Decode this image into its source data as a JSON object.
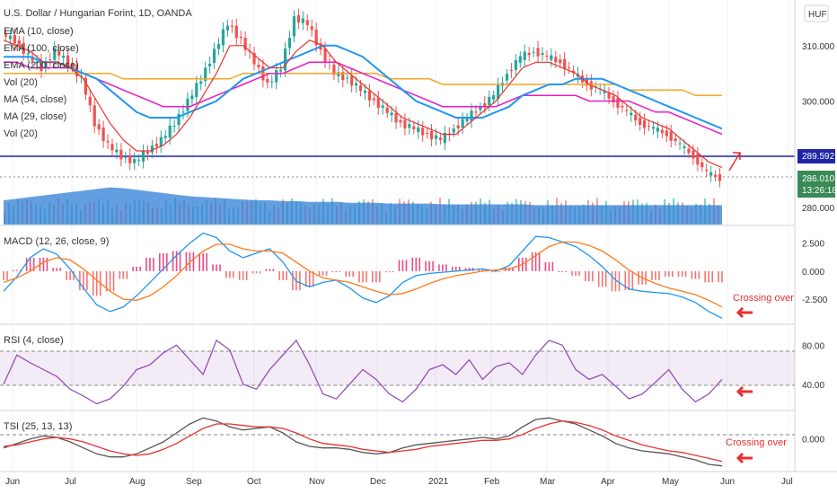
{
  "header": {
    "title": "U.S. Dollar / Hungarian Forint, 1D, OANDA",
    "currency": "HUF",
    "legend": [
      "EMA (10, close)",
      "EMA (100, close)",
      "EMA (200, close)",
      "Vol (20)",
      "MA (54, close)",
      "MA (29, close)",
      "Vol (20)"
    ]
  },
  "panes": {
    "macd_label": "MACD (12, 26, close, 9)",
    "rsi_label": "RSI (4, close)",
    "tsi_label": "TSI (25, 13, 13)"
  },
  "annotations": {
    "macd_note": "Crossing over",
    "tsi_note": "Crossing over"
  },
  "price_badges": {
    "level": "289.592",
    "last": "286.010",
    "countdown": "13:26:18"
  },
  "colors": {
    "up": "#26a69a",
    "down": "#ef5350",
    "ema10": "#e8322f",
    "ema100": "#e91ec6",
    "ema200": "#f5a623",
    "ma54": "#2196f3",
    "volume": "#2f7fd6",
    "level_line": "#1f26a8",
    "macd": "#2196f3",
    "signal": "#ff7a1a",
    "hist_pos": "#e91e63",
    "rsi": "#8e44ad",
    "tsi": "#555555",
    "tsi_signal": "#e8322f",
    "annotation": "#e8322f"
  },
  "chart_data": {
    "type": "line",
    "x_labels": [
      "Jun",
      "Jul",
      "Aug",
      "Sep",
      "Oct",
      "Nov",
      "Dec",
      "2021",
      "Feb",
      "Mar",
      "Apr",
      "May",
      "Jun",
      "Jul"
    ],
    "price_axis": [
      "310.000",
      "300.000",
      "280.000"
    ],
    "macd_axis": [
      "2.500",
      "0.000",
      "-2.500"
    ],
    "rsi_axis": [
      "80.00",
      "40.00"
    ],
    "tsi_axis": [
      "0.000"
    ],
    "price_close": [
      312,
      311,
      308,
      306,
      309,
      307,
      304,
      296,
      292,
      290,
      289,
      291,
      293,
      296,
      300,
      304,
      309,
      314,
      311,
      307,
      303,
      306,
      315,
      314,
      309,
      305,
      304,
      302,
      300,
      298,
      296,
      295,
      294,
      293,
      295,
      297,
      299,
      301,
      305,
      308,
      309,
      308,
      307,
      305,
      303,
      302,
      300,
      298,
      296,
      295,
      294,
      292,
      290,
      287,
      286
    ],
    "ema10": [
      311,
      310,
      309,
      307,
      307,
      306,
      304,
      300,
      296,
      293,
      291,
      291,
      292,
      294,
      297,
      301,
      305,
      310,
      310,
      308,
      306,
      306,
      309,
      311,
      310,
      307,
      305,
      303,
      301,
      299,
      297,
      296,
      295,
      294,
      294,
      296,
      298,
      300,
      303,
      306,
      307,
      307,
      306,
      305,
      303,
      302,
      301,
      299,
      297,
      296,
      295,
      293,
      291,
      289,
      288
    ],
    "ema100": [
      307,
      307,
      306,
      306,
      306,
      306,
      305,
      304,
      303,
      302,
      301,
      300,
      299,
      299,
      299,
      300,
      301,
      302,
      303,
      304,
      305,
      305,
      306,
      307,
      307,
      307,
      306,
      305,
      304,
      303,
      302,
      301,
      300,
      299,
      299,
      299,
      299,
      299,
      300,
      301,
      301,
      301,
      301,
      301,
      300,
      300,
      300,
      300,
      299,
      298,
      298,
      297,
      296,
      295,
      294
    ],
    "ema200": [
      305,
      305,
      305,
      305,
      305,
      305,
      305,
      305,
      305,
      304,
      304,
      304,
      304,
      304,
      304,
      304,
      304,
      304,
      305,
      305,
      305,
      305,
      305,
      305,
      305,
      305,
      305,
      305,
      305,
      304,
      304,
      304,
      304,
      303,
      303,
      303,
      303,
      303,
      303,
      303,
      303,
      303,
      303,
      303,
      303,
      303,
      303,
      302,
      302,
      302,
      302,
      302,
      301,
      301,
      301
    ],
    "ma54": [
      308,
      308,
      308,
      307,
      307,
      306,
      305,
      304,
      302,
      300,
      298,
      297,
      297,
      297,
      298,
      299,
      300,
      302,
      304,
      305,
      306,
      307,
      308,
      309,
      310,
      310,
      309,
      308,
      306,
      304,
      302,
      300,
      299,
      298,
      297,
      297,
      297,
      298,
      299,
      301,
      302,
      303,
      303,
      304,
      304,
      304,
      303,
      302,
      301,
      300,
      299,
      298,
      297,
      296,
      295
    ],
    "volume": [
      30,
      32,
      34,
      36,
      38,
      40,
      42,
      44,
      46,
      45,
      43,
      41,
      39,
      37,
      35,
      34,
      33,
      32,
      31,
      30,
      30,
      29,
      29,
      28,
      28,
      28,
      27,
      27,
      27,
      26,
      26,
      26,
      26,
      25,
      25,
      25,
      25,
      25,
      25,
      25,
      24,
      24,
      24,
      24,
      24,
      24,
      24,
      24,
      24,
      24,
      24,
      24,
      24,
      24,
      24
    ],
    "macd": [
      -1.8,
      -0.5,
      1.2,
      2.0,
      1.5,
      0.2,
      -1.5,
      -3.0,
      -3.6,
      -3.2,
      -2.2,
      -1.0,
      0.2,
      1.4,
      2.5,
      3.4,
      3.0,
      1.8,
      1.2,
      1.6,
      2.0,
      0.8,
      -0.9,
      -1.4,
      -1.0,
      -0.8,
      -1.5,
      -2.4,
      -2.8,
      -2.2,
      -1.0,
      -0.4,
      -0.2,
      -0.1,
      0.0,
      0.1,
      0.2,
      0.0,
      0.5,
      1.8,
      3.1,
      3.0,
      2.6,
      2.2,
      1.4,
      0.4,
      -0.8,
      -1.6,
      -1.8,
      -1.9,
      -2.0,
      -2.3,
      -2.8,
      -3.6,
      -4.2
    ],
    "signal": [
      -1.0,
      -0.6,
      0.0,
      0.8,
      1.2,
      1.0,
      0.2,
      -0.8,
      -1.8,
      -2.5,
      -2.6,
      -2.2,
      -1.4,
      -0.4,
      0.8,
      1.8,
      2.4,
      2.4,
      2.0,
      1.8,
      1.8,
      1.6,
      0.8,
      0.0,
      -0.6,
      -0.8,
      -1.0,
      -1.4,
      -1.8,
      -2.1,
      -2.0,
      -1.6,
      -1.1,
      -0.7,
      -0.4,
      -0.2,
      0.0,
      0.1,
      0.2,
      0.6,
      1.4,
      2.2,
      2.6,
      2.6,
      2.3,
      1.8,
      1.0,
      0.1,
      -0.6,
      -1.1,
      -1.5,
      -1.8,
      -2.1,
      -2.6,
      -3.2
    ],
    "rsi": [
      40,
      70,
      62,
      55,
      48,
      35,
      28,
      20,
      25,
      38,
      55,
      60,
      72,
      80,
      65,
      50,
      85,
      75,
      40,
      35,
      55,
      70,
      85,
      60,
      30,
      25,
      40,
      55,
      45,
      30,
      22,
      35,
      55,
      60,
      50,
      65,
      45,
      58,
      62,
      50,
      70,
      85,
      80,
      55,
      45,
      50,
      38,
      25,
      30,
      42,
      55,
      35,
      22,
      30,
      45
    ],
    "tsi": [
      -6,
      -3,
      0,
      2,
      1,
      -2,
      -6,
      -10,
      -12,
      -12,
      -10,
      -6,
      -2,
      4,
      10,
      14,
      12,
      8,
      6,
      7,
      8,
      4,
      -2,
      -5,
      -6,
      -6,
      -7,
      -9,
      -10,
      -9,
      -6,
      -4,
      -3,
      -2,
      -1,
      0,
      1,
      0,
      2,
      8,
      13,
      14,
      12,
      10,
      6,
      2,
      -3,
      -6,
      -8,
      -9,
      -10,
      -12,
      -14,
      -17,
      -18
    ],
    "tsi_signal": [
      -5,
      -4,
      -2,
      0,
      1,
      0,
      -2,
      -5,
      -8,
      -10,
      -11,
      -10,
      -7,
      -3,
      2,
      7,
      10,
      10,
      9,
      8,
      8,
      7,
      4,
      0,
      -3,
      -4,
      -5,
      -7,
      -8,
      -9,
      -8,
      -7,
      -5,
      -4,
      -3,
      -2,
      -1,
      -1,
      0,
      3,
      7,
      10,
      12,
      11,
      9,
      6,
      2,
      -1,
      -4,
      -6,
      -8,
      -9,
      -11,
      -13,
      -15
    ]
  }
}
